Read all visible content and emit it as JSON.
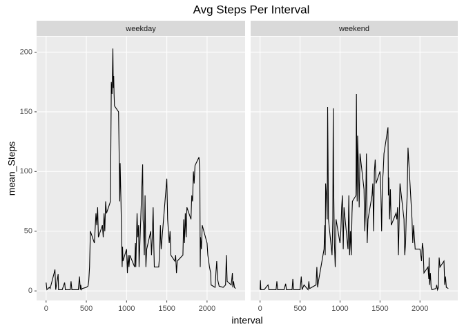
{
  "chart_data": {
    "type": "line",
    "title": "Avg Steps Per Interval",
    "xlabel": "interval",
    "ylabel": "mean_Steps",
    "xlim": [
      -118,
      2473
    ],
    "ylim": [
      -8,
      213
    ],
    "xticks": [
      0,
      500,
      1000,
      1500,
      2000
    ],
    "yticks": [
      0,
      50,
      100,
      150,
      200
    ],
    "grid": true,
    "color": "#000000",
    "facets": [
      {
        "title": "weekday",
        "x": [
          0,
          10,
          25,
          40,
          50,
          100,
          110,
          120,
          150,
          155,
          200,
          230,
          240,
          300,
          310,
          320,
          400,
          415,
          425,
          430,
          440,
          450,
          500,
          520,
          530,
          540,
          550,
          600,
          620,
          630,
          640,
          650,
          700,
          710,
          720,
          730,
          740,
          750,
          800,
          810,
          820,
          830,
          835,
          840,
          845,
          850,
          900,
          910,
          915,
          920,
          930,
          945,
          950,
          955,
          1000,
          1010,
          1020,
          1030,
          1040,
          1100,
          1110,
          1115,
          1130,
          1140,
          1150,
          1155,
          1200,
          1205,
          1210,
          1220,
          1230,
          1240,
          1250,
          1300,
          1310,
          1320,
          1330,
          1340,
          1345,
          1400,
          1410,
          1420,
          1430,
          1500,
          1510,
          1520,
          1530,
          1540,
          1550,
          1600,
          1610,
          1620,
          1630,
          1700,
          1710,
          1720,
          1730,
          1740,
          1750,
          1800,
          1810,
          1820,
          1830,
          1840,
          1850,
          1900,
          1910,
          1915,
          1920,
          1930,
          1940,
          2000,
          2010,
          2030,
          2045,
          2050,
          2100,
          2110,
          2120,
          2130,
          2150,
          2200,
          2230,
          2240,
          2250,
          2300,
          2315,
          2320,
          2330,
          2340,
          2355
        ],
        "values": [
          7,
          1,
          2,
          3,
          2,
          15,
          18,
          1,
          14,
          1,
          1,
          7,
          1,
          1,
          8,
          1,
          1,
          12,
          1,
          5,
          1,
          2,
          3,
          4,
          8,
          20,
          50,
          40,
          65,
          55,
          70,
          45,
          55,
          45,
          65,
          50,
          75,
          65,
          75,
          175,
          165,
          203,
          170,
          180,
          165,
          155,
          150,
          105,
          75,
          107,
          75,
          20,
          37,
          25,
          35,
          15,
          30,
          20,
          30,
          20,
          40,
          20,
          65,
          45,
          55,
          20,
          106,
          60,
          55,
          30,
          80,
          20,
          35,
          50,
          30,
          45,
          70,
          35,
          20,
          20,
          30,
          55,
          35,
          94,
          60,
          50,
          40,
          50,
          30,
          25,
          30,
          15,
          25,
          30,
          60,
          40,
          65,
          45,
          70,
          60,
          80,
          75,
          100,
          90,
          105,
          112,
          100,
          20,
          45,
          35,
          55,
          40,
          30,
          20,
          15,
          5,
          3,
          15,
          25,
          10,
          4,
          3,
          5,
          30,
          8,
          5,
          15,
          3,
          8,
          3,
          2
        ]
      },
      {
        "title": "weekend",
        "x": [
          0,
          5,
          10,
          50,
          100,
          110,
          150,
          200,
          210,
          220,
          300,
          320,
          330,
          400,
          410,
          420,
          500,
          515,
          525,
          550,
          600,
          610,
          620,
          700,
          710,
          720,
          730,
          800,
          810,
          815,
          820,
          830,
          840,
          845,
          850,
          855,
          900,
          910,
          915,
          920,
          930,
          940,
          950,
          1000,
          1010,
          1020,
          1030,
          1040,
          1050,
          1100,
          1110,
          1120,
          1130,
          1140,
          1150,
          1155,
          1200,
          1205,
          1210,
          1215,
          1220,
          1230,
          1240,
          1250,
          1300,
          1310,
          1320,
          1330,
          1340,
          1350,
          1400,
          1410,
          1420,
          1430,
          1440,
          1450,
          1500,
          1510,
          1520,
          1530,
          1540,
          1550,
          1600,
          1605,
          1610,
          1620,
          1630,
          1640,
          1700,
          1710,
          1720,
          1730,
          1740,
          1750,
          1800,
          1810,
          1820,
          1830,
          1840,
          1850,
          1900,
          1910,
          1920,
          1930,
          1940,
          2000,
          2010,
          2020,
          2030,
          2040,
          2050,
          2100,
          2110,
          2115,
          2120,
          2130,
          2140,
          2150,
          2200,
          2210,
          2220,
          2230,
          2240,
          2250,
          2300,
          2310,
          2320,
          2330,
          2355
        ],
        "values": [
          1,
          9,
          1,
          1,
          5,
          1,
          1,
          1,
          8,
          1,
          1,
          6,
          1,
          1,
          10,
          1,
          1,
          12,
          1,
          5,
          1,
          8,
          2,
          5,
          20,
          3,
          8,
          35,
          55,
          30,
          90,
          80,
          60,
          154,
          110,
          60,
          30,
          60,
          153,
          90,
          40,
          20,
          60,
          40,
          50,
          70,
          80,
          35,
          70,
          35,
          80,
          30,
          50,
          30,
          65,
          75,
          80,
          165,
          90,
          75,
          130,
          105,
          70,
          115,
          85,
          50,
          70,
          115,
          40,
          60,
          80,
          90,
          50,
          100,
          110,
          90,
          100,
          85,
          50,
          90,
          100,
          115,
          137,
          80,
          95,
          60,
          85,
          55,
          65,
          60,
          70,
          30,
          60,
          90,
          60,
          30,
          40,
          65,
          80,
          120,
          60,
          40,
          55,
          45,
          35,
          35,
          30,
          25,
          40,
          35,
          15,
          20,
          10,
          28,
          5,
          15,
          3,
          1,
          2,
          5,
          1,
          3,
          28,
          20,
          25,
          5,
          12,
          3,
          2
        ]
      }
    ]
  }
}
